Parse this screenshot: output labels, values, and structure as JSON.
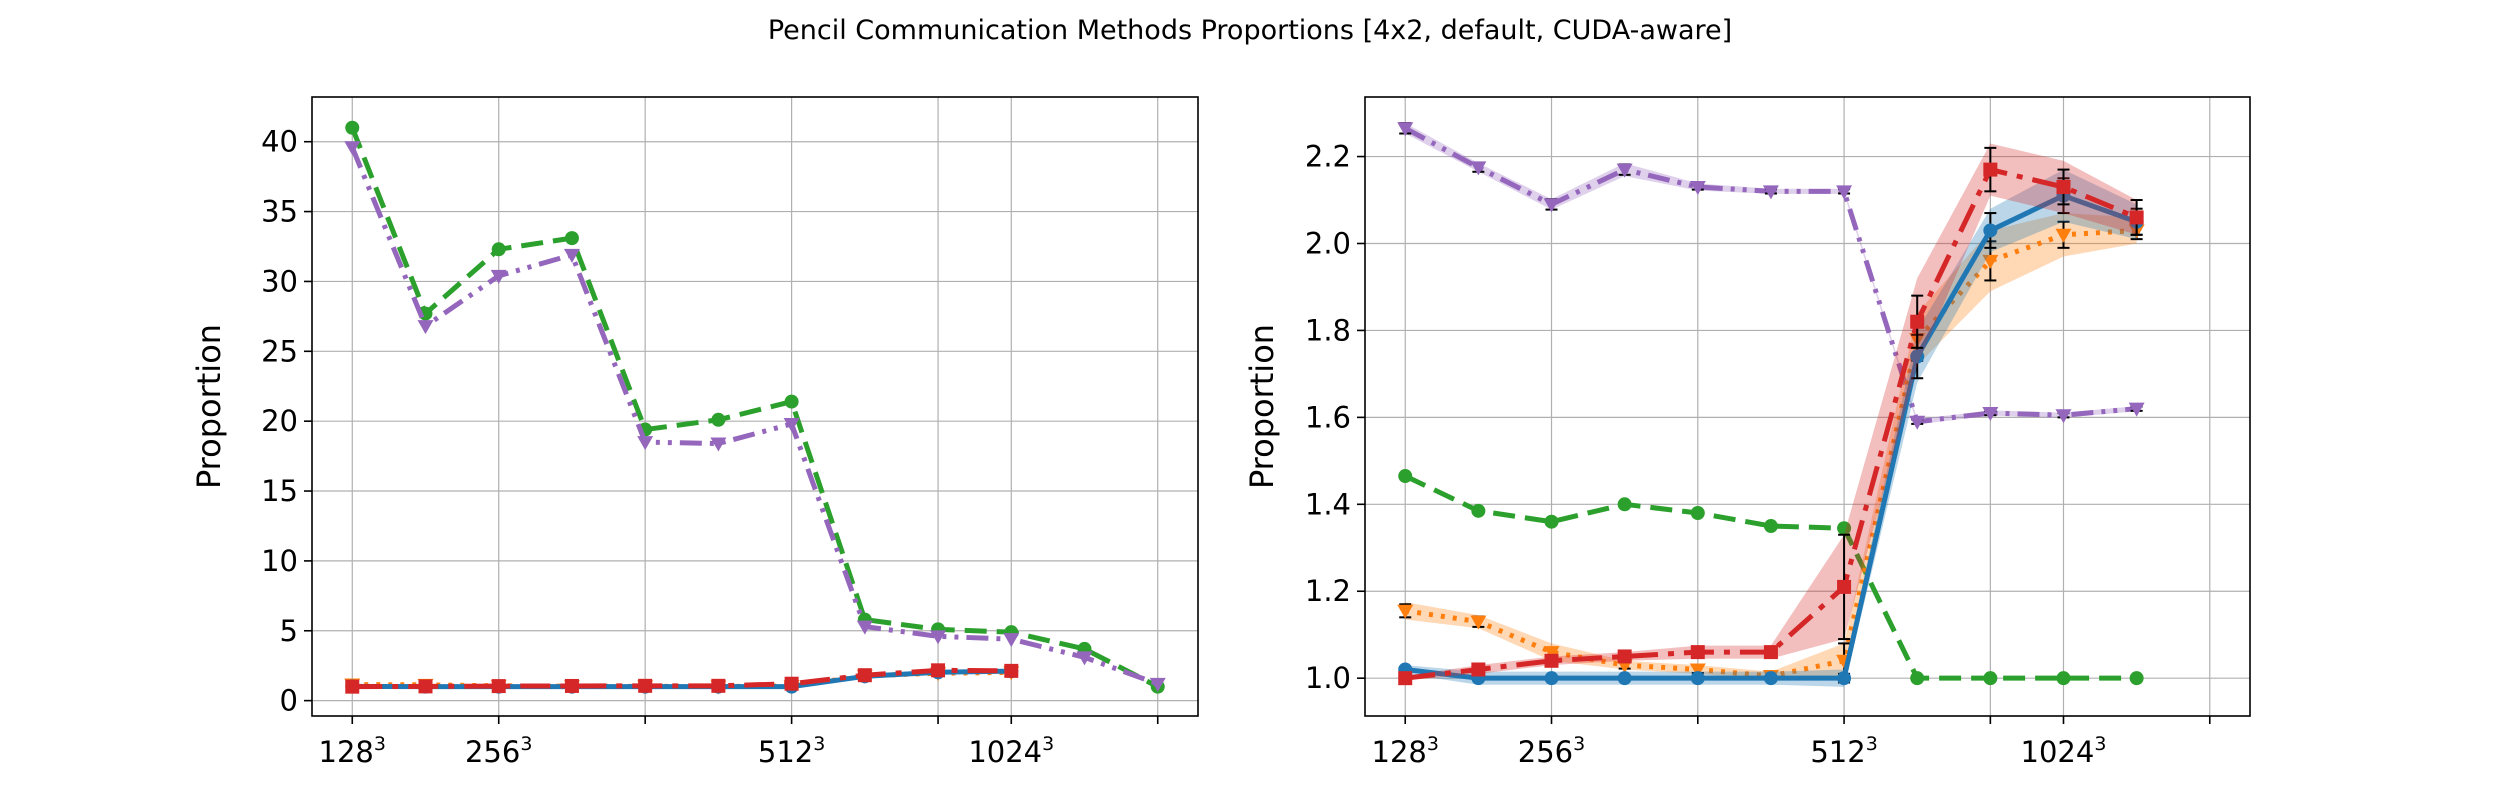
{
  "title": "Pencil Communication Methods Proportions [4x2, default, CUDA-aware]",
  "colors": {
    "blue": "#1f77b4",
    "orange": "#ff7f0e",
    "green": "#2ca02c",
    "red": "#d62728",
    "purple": "#9467bd",
    "grid": "#b0b0b0"
  },
  "chart_data": [
    {
      "type": "line",
      "ylabel": "Proportion",
      "xlabel": "",
      "x": [
        0,
        1,
        2,
        3,
        4,
        5,
        6,
        7,
        8,
        9,
        10,
        11
      ],
      "xticks": [
        {
          "pos": 0,
          "base": "128",
          "exp": "3"
        },
        {
          "pos": 2,
          "base": "256",
          "exp": "3"
        },
        {
          "pos": 4,
          "base": "",
          "exp": ""
        },
        {
          "pos": 6,
          "base": "512",
          "exp": "3"
        },
        {
          "pos": 8,
          "base": "",
          "exp": ""
        },
        {
          "pos": 9,
          "base": "1024",
          "exp": "3"
        },
        {
          "pos": 11,
          "base": "",
          "exp": ""
        }
      ],
      "xlim": [
        -0.55,
        11.55
      ],
      "ylim": [
        -1.1,
        43.2
      ],
      "yticks": [
        0,
        5,
        10,
        15,
        20,
        25,
        30,
        35,
        40
      ],
      "grid": true,
      "series": [
        {
          "color": "green",
          "dash": "22,10",
          "marker": "circle",
          "values": [
            41.0,
            27.7,
            32.3,
            33.1,
            19.4,
            20.1,
            21.4,
            5.8,
            5.1,
            4.9,
            3.7,
            1.0
          ]
        },
        {
          "color": "purple",
          "dash": "22,8,4,8,4,8",
          "marker": "triangle-down",
          "values": [
            39.6,
            26.8,
            30.4,
            31.9,
            18.5,
            18.4,
            19.8,
            5.3,
            4.6,
            4.4,
            3.1,
            1.2
          ]
        },
        {
          "color": "orange",
          "dash": "4,8",
          "marker": "triangle-down",
          "values": [
            1.15,
            1.13,
            1.06,
            1.03,
            1.02,
            1.01,
            1.04,
            1.78,
            1.96,
            2.02,
            null,
            null
          ]
        },
        {
          "color": "blue",
          "dash": "",
          "marker": "circle",
          "values": [
            1.02,
            1.0,
            1.0,
            1.0,
            1.0,
            1.0,
            1.0,
            1.74,
            2.03,
            2.11,
            null,
            null
          ]
        },
        {
          "color": "red",
          "dash": "30,10,6,10",
          "marker": "square",
          "values": [
            1.0,
            1.02,
            1.04,
            1.05,
            1.06,
            1.06,
            1.21,
            1.82,
            2.17,
            2.13,
            null,
            null
          ]
        }
      ]
    },
    {
      "type": "line",
      "ylabel": "Proportion",
      "xlabel": "",
      "x": [
        0,
        1,
        2,
        3,
        4,
        5,
        6,
        7,
        8,
        9,
        10
      ],
      "xticks": [
        {
          "pos": 0,
          "base": "128",
          "exp": "3"
        },
        {
          "pos": 2,
          "base": "256",
          "exp": "3"
        },
        {
          "pos": 4,
          "base": "",
          "exp": ""
        },
        {
          "pos": 6,
          "base": "512",
          "exp": "3"
        },
        {
          "pos": 8,
          "base": "",
          "exp": ""
        },
        {
          "pos": 9,
          "base": "1024",
          "exp": "3"
        },
        {
          "pos": 11,
          "base": "",
          "exp": ""
        }
      ],
      "xlim": [
        -0.55,
        11.55
      ],
      "ylim": [
        0.913,
        2.337
      ],
      "yticks": [
        1.0,
        1.2,
        1.4,
        1.6,
        1.8,
        2.0,
        2.2
      ],
      "grid": true,
      "series": [
        {
          "color": "purple",
          "dash": "22,8,4,8,4,8",
          "marker": "triangle-down",
          "values": [
            2.265,
            2.175,
            2.09,
            2.17,
            2.13,
            2.12,
            2.12,
            1.59,
            1.61,
            1.605,
            1.62
          ],
          "band": [
            0.012,
            0.01,
            0.012,
            0.015,
            0.008,
            0.006,
            0.006,
            0.006,
            0.006,
            0.006,
            0.006
          ],
          "err": [
            0.012,
            0.01,
            0.012,
            0.012,
            0.006,
            0.005,
            0.005,
            0.005,
            0.005,
            0.005,
            0.005
          ]
        },
        {
          "color": "green",
          "dash": "22,10",
          "marker": "circle",
          "values": [
            1.465,
            1.385,
            1.36,
            1.4,
            1.38,
            1.35,
            1.345,
            1.0,
            1.0,
            1.0,
            1.0
          ]
        },
        {
          "color": "orange",
          "dash": "4,8",
          "marker": "triangle-down",
          "values": [
            1.155,
            1.13,
            1.06,
            1.03,
            1.02,
            1.005,
            1.04,
            1.78,
            1.96,
            2.02,
            2.03
          ],
          "band": [
            0.02,
            0.015,
            0.02,
            0.01,
            0.01,
            0.01,
            0.04,
            0.06,
            0.07,
            0.05,
            0.03
          ],
          "err": [
            0.015,
            0.012,
            0.01,
            0.008,
            0.008,
            0.008,
            0.04,
            0.05,
            0.045,
            0.03,
            0.02
          ]
        },
        {
          "color": "blue",
          "dash": "",
          "marker": "circle",
          "values": [
            1.02,
            1.0,
            1.0,
            1.0,
            1.0,
            1.0,
            1.0,
            1.74,
            2.03,
            2.11,
            2.05
          ],
          "band": [
            0.01,
            0.015,
            0.015,
            0.015,
            0.015,
            0.015,
            0.02,
            0.06,
            0.05,
            0.06,
            0.04
          ],
          "err": [
            0.005,
            0.005,
            0.005,
            0.005,
            0.005,
            0.005,
            0.01,
            0.05,
            0.04,
            0.04,
            0.03
          ]
        },
        {
          "color": "red",
          "dash": "30,10,6,10",
          "marker": "square",
          "values": [
            1.0,
            1.02,
            1.04,
            1.05,
            1.06,
            1.06,
            1.21,
            1.82,
            2.17,
            2.13,
            2.06
          ],
          "band": [
            0.005,
            0.01,
            0.01,
            0.01,
            0.015,
            0.015,
            0.12,
            0.1,
            0.06,
            0.06,
            0.04
          ],
          "err": [
            0.005,
            0.005,
            0.005,
            0.005,
            0.005,
            0.005,
            0.12,
            0.06,
            0.05,
            0.04,
            0.04
          ]
        }
      ]
    }
  ]
}
